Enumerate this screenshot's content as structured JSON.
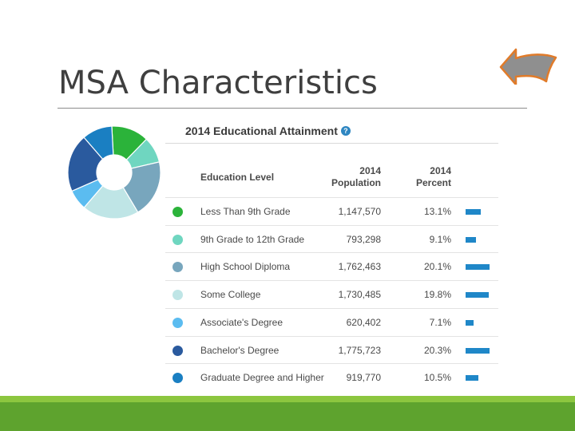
{
  "slide": {
    "title": "MSA Characteristics"
  },
  "panel": {
    "title": "2014 Educational Attainment",
    "help_glyph": "?",
    "columns": {
      "level": "Education Level",
      "population_line1": "2014",
      "population_line2": "Population",
      "percent_line1": "2014",
      "percent_line2": "Percent"
    }
  },
  "colors": {
    "accent": "#1f87c8",
    "band_dark": "#5ea32e",
    "band_light": "#8cc63f",
    "arrow_fill": "#8f8f8f",
    "arrow_stroke": "#e07b2a"
  },
  "chart_data": {
    "type": "table",
    "title": "2014 Educational Attainment",
    "columns": [
      "Education Level",
      "2014 Population",
      "2014 Percent"
    ],
    "rows": [
      {
        "level": "Less Than 9th Grade",
        "population": "1,147,570",
        "percent": "13.1%",
        "pct_value": 13.1,
        "color": "#2bb33a"
      },
      {
        "level": "9th Grade to 12th Grade",
        "population": "793,298",
        "percent": "9.1%",
        "pct_value": 9.1,
        "color": "#6fd6c0"
      },
      {
        "level": "High School Diploma",
        "population": "1,762,463",
        "percent": "20.1%",
        "pct_value": 20.1,
        "color": "#78a6bd"
      },
      {
        "level": "Some College",
        "population": "1,730,485",
        "percent": "19.8%",
        "pct_value": 19.8,
        "color": "#bfe5e6"
      },
      {
        "level": "Associate's Degree",
        "population": "620,402",
        "percent": "7.1%",
        "pct_value": 7.1,
        "color": "#5bbcf0"
      },
      {
        "level": "Bachelor's Degree",
        "population": "1,775,723",
        "percent": "20.3%",
        "pct_value": 20.3,
        "color": "#2a5a9e"
      },
      {
        "level": "Graduate Degree and Higher",
        "population": "919,770",
        "percent": "10.5%",
        "pct_value": 10.5,
        "color": "#1a7fc2"
      }
    ]
  }
}
